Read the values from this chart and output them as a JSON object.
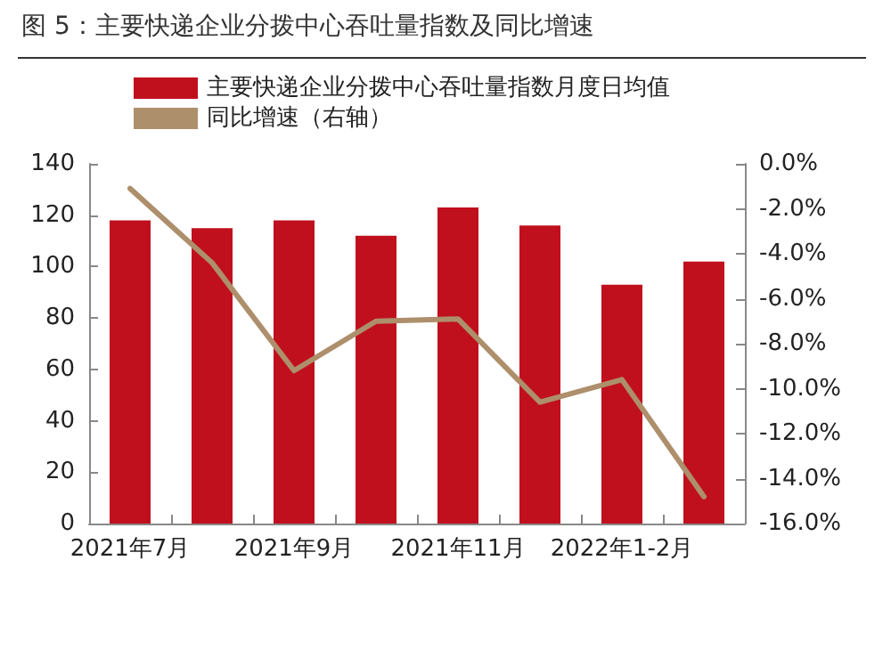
{
  "chart_data": {
    "type": "bar",
    "title": "图 5：主要快递企业分拨中心吞吐量指数及同比增速",
    "categories": [
      "2021年7月",
      null,
      "2021年9月",
      null,
      "2021年11月",
      null,
      "2022年1-2月",
      null
    ],
    "series": [
      {
        "name": "主要快递企业分拨中心吞吐量指数月度日均值",
        "color": "#c0101e",
        "values": [
          118,
          115,
          118,
          112,
          123,
          116,
          93,
          102
        ]
      },
      {
        "name": "同比增速（右轴）",
        "type": "line",
        "axis": "y2",
        "color": "#ad8f6c",
        "marker": "none",
        "line_style": "solid",
        "values": [
          -1.1,
          -4.4,
          -9.2,
          -7.0,
          -6.9,
          -10.6,
          -9.6,
          -14.8
        ]
      }
    ],
    "ylim": [
      0,
      140
    ],
    "yticks": [
      0,
      20,
      40,
      60,
      80,
      100,
      120,
      140
    ],
    "y2lim": [
      -16,
      0
    ],
    "y2ticks": [
      {
        "value": 0,
        "label": "0.0%"
      },
      {
        "value": -2,
        "label": "-2.0%"
      },
      {
        "value": -4,
        "label": "-4.0%"
      },
      {
        "value": -6,
        "label": "-6.0%"
      },
      {
        "value": -8,
        "label": "-8.0%"
      },
      {
        "value": -10,
        "label": "-10.0%"
      },
      {
        "value": -12,
        "label": "-12.0%"
      },
      {
        "value": -14,
        "label": "-14.0%"
      },
      {
        "value": -16,
        "label": "-16.0%"
      }
    ],
    "grid": false,
    "legend": "top left"
  }
}
